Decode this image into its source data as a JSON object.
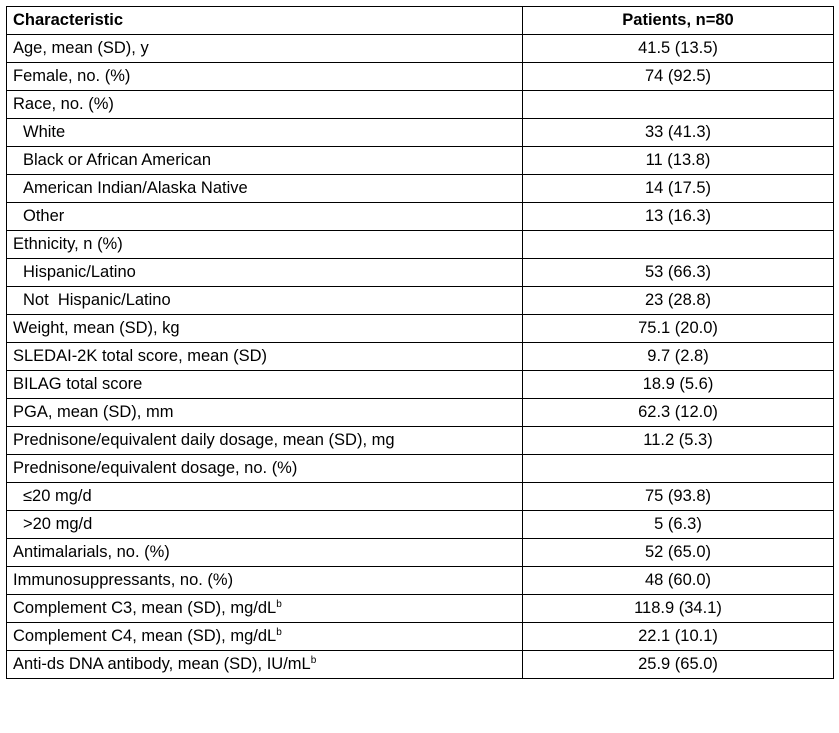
{
  "table": {
    "header": [
      "Characteristic",
      "Patients, n=80"
    ],
    "rows": [
      {
        "label": "Age, mean (SD), y",
        "value": "41.5 (13.5)"
      },
      {
        "label": "Female, no. (%)",
        "value": "74 (92.5)"
      },
      {
        "label": "Race, no. (%)",
        "items": [
          {
            "label": "White",
            "value": "33 (41.3)"
          },
          {
            "label": "Black or African American",
            "value": "11 (13.8)"
          },
          {
            "label": "American Indian/Alaska Native",
            "value": "14 (17.5)"
          },
          {
            "label": "Other",
            "value": "13 (16.3)"
          }
        ]
      },
      {
        "label": "Ethnicity, n (%)",
        "items": [
          {
            "label": "Hispanic/Latino",
            "value": "53 (66.3)"
          },
          {
            "label": "Not  Hispanic/Latino",
            "value": "23 (28.8)"
          }
        ]
      },
      {
        "label": "Weight, mean (SD), kg",
        "value": "75.1 (20.0)"
      },
      {
        "label": "SLEDAI-2K total score, mean (SD)",
        "value": "9.7 (2.8)"
      },
      {
        "label": "BILAG total score",
        "value": "18.9 (5.6)"
      },
      {
        "label": "PGA, mean (SD), mm",
        "value": "62.3 (12.0)"
      },
      {
        "label": "Prednisone/equivalent daily dosage, mean (SD), mg",
        "value": "11.2 (5.3)"
      },
      {
        "label": "Prednisone/equivalent dosage, no. (%)",
        "items": [
          {
            "label": "≤20 mg/d",
            "value": "75 (93.8)"
          },
          {
            "label": ">20 mg/d",
            "value": "5 (6.3)"
          }
        ]
      },
      {
        "label": "Antimalarials, no. (%)",
        "value": "52 (65.0)"
      },
      {
        "label": "Immunosuppressants, no. (%)",
        "value": "48 (60.0)"
      },
      {
        "label": "Complement C3, mean (SD), mg/dL",
        "sup": "b",
        "value": "118.9 (34.1)"
      },
      {
        "label": "Complement C4, mean (SD), mg/dL",
        "sup": "b",
        "value": "22.1 (10.1)"
      },
      {
        "label": "Anti-ds DNA antibody, mean (SD), IU/mL",
        "sup": "b",
        "value": "25.9 (65.0)"
      }
    ]
  }
}
